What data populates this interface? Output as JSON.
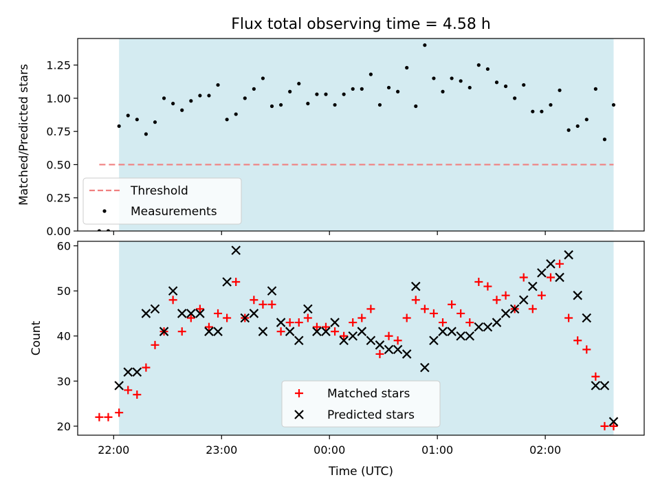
{
  "chart_data": [
    {
      "type": "scatter",
      "title": "Flux total observing time = 4.58 h",
      "xlabel": "",
      "ylabel": "Matched/Predicted stars",
      "ylim": [
        0,
        1.45
      ],
      "yticks": [
        "0.00",
        "0.25",
        "0.50",
        "0.75",
        "1.00",
        "1.25"
      ],
      "x_unit": "minutes after 22:00 UTC",
      "xlim": [
        -20,
        295
      ],
      "observing_window": [
        3,
        278
      ],
      "threshold": 0.5,
      "threshold_range": [
        -8,
        278
      ],
      "threshold_color": "#f08080",
      "window_color": "#d4ebf1",
      "legend": {
        "placement": "lower-left",
        "entries": [
          "Threshold",
          "Measurements"
        ]
      },
      "series": [
        {
          "name": "Measurements",
          "marker": "dot",
          "color": "#000000",
          "x": [
            -8,
            -3,
            3,
            8,
            13,
            18,
            23,
            28,
            33,
            38,
            43,
            48,
            53,
            58,
            63,
            68,
            73,
            78,
            83,
            88,
            93,
            98,
            103,
            108,
            113,
            118,
            123,
            128,
            133,
            138,
            143,
            148,
            153,
            158,
            163,
            168,
            173,
            178,
            183,
            188,
            193,
            198,
            203,
            208,
            213,
            218,
            223,
            228,
            233,
            238,
            243,
            248,
            253,
            258,
            263,
            268,
            273,
            278
          ],
          "y": [
            0.0,
            0.0,
            0.79,
            0.87,
            0.84,
            0.73,
            0.82,
            1.0,
            0.96,
            0.91,
            0.98,
            1.02,
            1.02,
            1.1,
            0.84,
            0.88,
            1.0,
            1.07,
            1.15,
            0.94,
            0.95,
            1.05,
            1.11,
            0.96,
            1.03,
            1.03,
            0.95,
            1.03,
            1.07,
            1.07,
            1.18,
            0.95,
            1.08,
            1.05,
            1.23,
            0.94,
            1.4,
            1.15,
            1.05,
            1.15,
            1.13,
            1.08,
            1.25,
            1.22,
            1.12,
            1.09,
            1.0,
            1.1,
            0.9,
            0.9,
            0.95,
            1.06,
            0.76,
            0.79,
            0.84,
            1.07,
            0.69,
            0.95
          ]
        }
      ]
    },
    {
      "type": "scatter",
      "title": "",
      "xlabel": "Time (UTC)",
      "ylabel": "Count",
      "ylim": [
        18,
        61
      ],
      "yticks": [
        "20",
        "30",
        "40",
        "50",
        "60"
      ],
      "xticks": [
        "22:00",
        "23:00",
        "00:00",
        "01:00",
        "02:00"
      ],
      "x_unit": "minutes after 22:00 UTC",
      "xlim": [
        -20,
        295
      ],
      "observing_window": [
        3,
        278
      ],
      "window_color": "#d4ebf1",
      "legend": {
        "placement": "lower-center",
        "entries": [
          "Matched stars",
          "Predicted stars"
        ]
      },
      "series": [
        {
          "name": "Matched stars",
          "marker": "plus",
          "color": "#ff0000",
          "x": [
            -8,
            -3,
            3,
            8,
            13,
            18,
            23,
            28,
            33,
            38,
            43,
            48,
            53,
            58,
            63,
            68,
            73,
            78,
            83,
            88,
            93,
            98,
            103,
            108,
            113,
            118,
            123,
            128,
            133,
            138,
            143,
            148,
            153,
            158,
            163,
            168,
            173,
            178,
            183,
            188,
            193,
            198,
            203,
            208,
            213,
            218,
            223,
            228,
            233,
            238,
            243,
            248,
            253,
            258,
            263,
            268,
            273,
            278
          ],
          "y": [
            22,
            22,
            23,
            28,
            27,
            33,
            38,
            41,
            48,
            41,
            44,
            46,
            42,
            45,
            44,
            52,
            44,
            48,
            47,
            47,
            41,
            43,
            43,
            44,
            42,
            42,
            41,
            40,
            43,
            44,
            46,
            36,
            40,
            39,
            44,
            48,
            46,
            45,
            43,
            47,
            45,
            43,
            52,
            51,
            48,
            49,
            46,
            53,
            46,
            49,
            53,
            56,
            44,
            39,
            37,
            31,
            20,
            20
          ]
        },
        {
          "name": "Predicted stars",
          "marker": "cross",
          "color": "#000000",
          "x": [
            3,
            8,
            13,
            18,
            23,
            28,
            33,
            38,
            43,
            48,
            53,
            58,
            63,
            68,
            73,
            78,
            83,
            88,
            93,
            98,
            103,
            108,
            113,
            118,
            123,
            128,
            133,
            138,
            143,
            148,
            153,
            158,
            163,
            168,
            173,
            178,
            183,
            188,
            193,
            198,
            203,
            208,
            213,
            218,
            223,
            228,
            233,
            238,
            243,
            248,
            253,
            258,
            263,
            268,
            273,
            278
          ],
          "y": [
            29,
            32,
            32,
            45,
            46,
            41,
            50,
            45,
            45,
            45,
            41,
            41,
            52,
            59,
            44,
            45,
            41,
            50,
            43,
            41,
            39,
            46,
            41,
            41,
            43,
            39,
            40,
            41,
            39,
            38,
            37,
            37,
            36,
            51,
            33,
            39,
            41,
            41,
            40,
            40,
            42,
            42,
            43,
            45,
            46,
            48,
            51,
            54,
            56,
            53,
            58,
            49,
            44,
            29,
            29,
            21
          ]
        }
      ]
    }
  ]
}
